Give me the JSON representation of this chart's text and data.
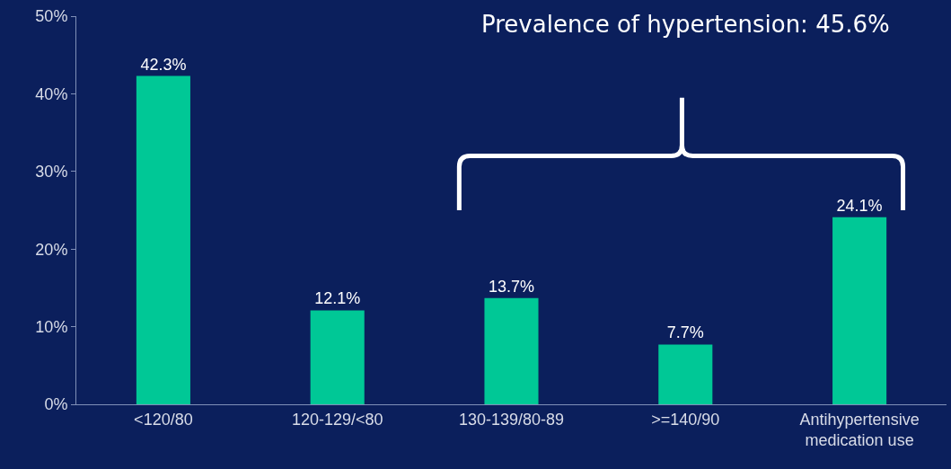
{
  "chart_data": {
    "type": "bar",
    "annotations": [
      "Prevalence of hypertension: 45.6%"
    ],
    "categories": [
      "<120/80",
      "120-129/<80",
      "130-139/80-89",
      ">=140/90",
      "Antihypertensive medication use"
    ],
    "values": [
      42.3,
      12.1,
      13.7,
      7.7,
      24.1
    ],
    "value_labels": [
      "42.3%",
      "12.1%",
      "13.7%",
      "7.7%",
      "24.1%"
    ],
    "color": "#00c896",
    "ylim": [
      0,
      50
    ],
    "yticks": [
      {
        "value": 0,
        "label": "0%"
      },
      {
        "value": 10,
        "label": "10%"
      },
      {
        "value": 20,
        "label": "20%"
      },
      {
        "value": 30,
        "label": "30%"
      },
      {
        "value": 40,
        "label": "40%"
      },
      {
        "value": 50,
        "label": "50%"
      }
    ],
    "grid": false,
    "legend": false
  }
}
